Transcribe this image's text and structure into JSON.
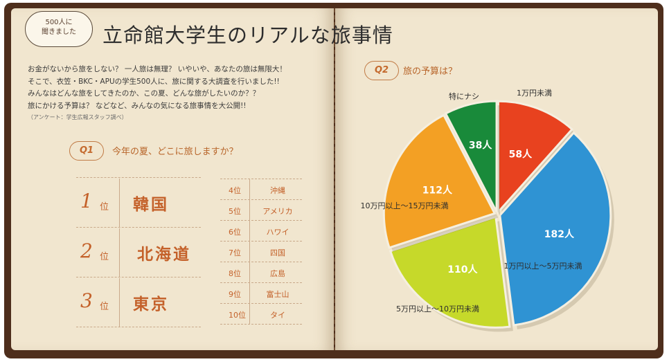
{
  "header": {
    "bubble_line1": "500人に",
    "bubble_line2": "聞きました",
    "title": "立命館大学生のリアルな旅事情"
  },
  "intro": {
    "lines": [
      "お金がないから旅をしない？ 一人旅は無理？ いやいや、あなたの旅は無限大！",
      "そこで、衣笠・BKC・APUの学生500人に、旅に関する大調査を行いました!!",
      "みんなはどんな旅をしてきたのか、この夏、どんな旅がしたいのか？？",
      "旅にかける予算は？ などなど、みんなの気になる旅事情を大公開!!"
    ],
    "source": "（アンケート：学生広報スタッフ調べ）"
  },
  "q1": {
    "badge": "Q1",
    "question": "今年の夏、どこに旅しますか？",
    "top": [
      {
        "rank": "1",
        "suffix": "位",
        "place": "韓国"
      },
      {
        "rank": "2",
        "suffix": "位",
        "place": "北海道"
      },
      {
        "rank": "3",
        "suffix": "位",
        "place": "東京"
      }
    ],
    "others": [
      {
        "rank": "4位",
        "place": "沖縄"
      },
      {
        "rank": "5位",
        "place": "アメリカ"
      },
      {
        "rank": "6位",
        "place": "ハワイ"
      },
      {
        "rank": "7位",
        "place": "四国"
      },
      {
        "rank": "8位",
        "place": "広島"
      },
      {
        "rank": "9位",
        "place": "富士山"
      },
      {
        "rank": "10位",
        "place": "タイ"
      }
    ]
  },
  "q2": {
    "badge": "Q2",
    "question": "旅の予算は？"
  },
  "chart_data": {
    "type": "pie",
    "title": "旅の予算は？",
    "unit": "人",
    "slices": [
      {
        "label": "1万円未満",
        "value": 58,
        "value_label": "58人",
        "color": "#e8421f"
      },
      {
        "label": "1万円以上〜5万円未満",
        "value": 182,
        "value_label": "182人",
        "color": "#2f93d3"
      },
      {
        "label": "5万円以上〜10万円未満",
        "value": 110,
        "value_label": "110人",
        "color": "#c6d92a"
      },
      {
        "label": "10万円以上〜15万円未満",
        "value": 112,
        "value_label": "112人",
        "color": "#f3a024"
      },
      {
        "label": "特にナシ",
        "value": 38,
        "value_label": "38人",
        "color": "#198a3a"
      }
    ]
  },
  "colors": {
    "accent": "#c4612a",
    "page": "#f1e6cf",
    "cover": "#4e2e1c"
  }
}
